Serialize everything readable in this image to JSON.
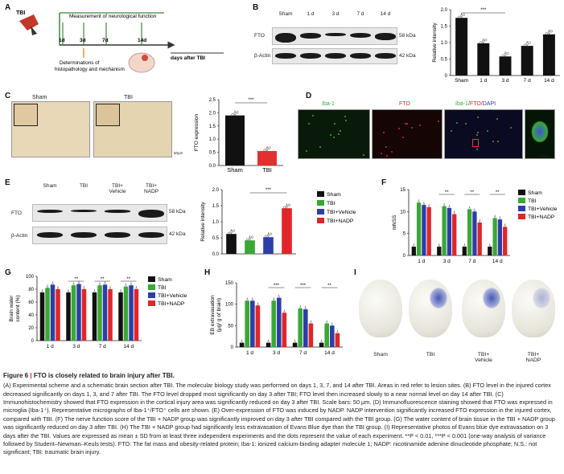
{
  "panelA": {
    "label": "A",
    "tbi": "TBI",
    "measure": "Measurement of neurological function",
    "days": [
      "1d",
      "3d",
      "7d",
      "14d"
    ],
    "histo": "Determinations of\nhistopathology and mechanism",
    "axis": "days after TBI"
  },
  "panelB": {
    "label": "B",
    "lanes": [
      "Sham",
      "1 d",
      "3 d",
      "7 d",
      "14 d"
    ],
    "rows": [
      "FTO",
      "β-Actin"
    ],
    "kda": [
      "58 kDa",
      "42 kDa"
    ],
    "chart_data": {
      "type": "bar",
      "categories": [
        "Sham",
        "1 d",
        "3 d",
        "7 d",
        "14 d"
      ],
      "values": [
        1.75,
        0.98,
        0.58,
        0.9,
        1.25
      ],
      "ylabel": "Relative intensity",
      "ylim": [
        0,
        2.0
      ],
      "yticks": [
        "0",
        "0.5",
        "1.0",
        "1.5",
        "2.0"
      ],
      "sig": "***"
    }
  },
  "panelC": {
    "label": "C",
    "img1": "Sham",
    "img2": "TBI",
    "scale": "50μm",
    "chart_data": {
      "type": "bar",
      "categories": [
        "Sham",
        "TBI"
      ],
      "values": [
        1.9,
        0.55
      ],
      "ylabel": "FTO expression",
      "ylim": [
        0,
        2.5
      ],
      "yticks": [
        "0.0",
        "0.5",
        "1.0",
        "1.5",
        "2.0",
        "2.5"
      ],
      "sig": "***",
      "colors": [
        "#111111",
        "#e23030"
      ]
    }
  },
  "panelD": {
    "label": "D",
    "t1": "Iba-1",
    "t2": "FTO",
    "t3a": "Iba-1",
    "t3b": "/FTO/",
    "t3c": "DAPI",
    "scale": "50μm"
  },
  "panelE": {
    "label": "E",
    "lanes": [
      "Sham",
      "TBI",
      "TBI+\nVehicle",
      "TBI+\nNADP"
    ],
    "rows": [
      "FTO",
      "β-Actin"
    ],
    "kda": [
      "58 kDa",
      "42 kDa"
    ],
    "chart_data": {
      "type": "bar",
      "categories": [
        "Sham",
        "TBI",
        "TBI+Vehicle",
        "TBI+NADP"
      ],
      "values": [
        0.62,
        0.42,
        0.52,
        1.42
      ],
      "ylabel": "Relative intensity",
      "ylim": [
        0,
        2.0
      ],
      "yticks": [
        "0.0",
        "0.5",
        "1.0",
        "1.5",
        "2.0"
      ],
      "sig": "***",
      "legend": [
        "Sham",
        "TBI",
        "TBI+Vehicle",
        "TBI+NADP"
      ]
    }
  },
  "panelF": {
    "label": "F",
    "chart_data": {
      "type": "bar",
      "categories": [
        "1 d",
        "3 d",
        "7 d",
        "14 d"
      ],
      "ylabel": "mNSS",
      "ylim": [
        0,
        15
      ],
      "yticks": [
        "0",
        "5",
        "10",
        "15"
      ],
      "sig": [
        "",
        "**",
        "**",
        "**"
      ],
      "series": [
        {
          "name": "Sham",
          "values": [
            2,
            2,
            2,
            2
          ]
        },
        {
          "name": "TBI",
          "values": [
            12,
            11.2,
            10.5,
            8.5
          ]
        },
        {
          "name": "TBI+Vehicle",
          "values": [
            11.5,
            10.8,
            10,
            8.2
          ]
        },
        {
          "name": "TBI+NADP",
          "values": [
            11,
            9.4,
            7.5,
            6.5
          ]
        }
      ]
    }
  },
  "panelG": {
    "label": "G",
    "chart_data": {
      "type": "bar",
      "categories": [
        "1 d",
        "3 d",
        "7 d",
        "14 d"
      ],
      "ylabel": "Brain water\ncontent (%)",
      "ylim": [
        0,
        100
      ],
      "yticks": [
        "0",
        "20",
        "40",
        "60",
        "80",
        "100"
      ],
      "sig": [
        "",
        "**",
        "**",
        "**"
      ],
      "series": [
        {
          "name": "Sham",
          "values": [
            75,
            75,
            75,
            75
          ]
        },
        {
          "name": "TBI",
          "values": [
            82,
            86,
            86,
            84
          ]
        },
        {
          "name": "TBI+Vehicle",
          "values": [
            87,
            88,
            87,
            86
          ]
        },
        {
          "name": "TBI+NADP",
          "values": [
            80,
            80,
            80,
            80
          ]
        }
      ]
    }
  },
  "panelH": {
    "label": "H",
    "chart_data": {
      "type": "bar",
      "categories": [
        "1 d",
        "3 d",
        "7 d",
        "14 d"
      ],
      "ylabel": "EB extravasation\n(μg/ g of brain)",
      "ylim": [
        0,
        150
      ],
      "yticks": [
        "0",
        "50",
        "100",
        "150"
      ],
      "sig": [
        "",
        "***",
        "***",
        "**"
      ],
      "series": [
        {
          "name": "Sham",
          "values": [
            10,
            10,
            10,
            10
          ]
        },
        {
          "name": "TBI",
          "values": [
            108,
            108,
            90,
            55
          ]
        },
        {
          "name": "TBI+Vehicle",
          "values": [
            108,
            115,
            88,
            50
          ]
        },
        {
          "name": "TBI+NADP",
          "values": [
            97,
            80,
            55,
            32
          ]
        }
      ]
    }
  },
  "panelI": {
    "label": "I",
    "brains": [
      "Sham",
      "TBI",
      "TBI+\nVehicle",
      "TBI+\nNADP"
    ]
  },
  "legendColors": {
    "Sham": "#111111",
    "TBI": "#3aa835",
    "TBI+Vehicle": "#2d3ea8",
    "TBI+NADP": "#e0262a"
  },
  "caption": {
    "fig": "Figure 6",
    "sep": " | ",
    "title": "FTO is closely related to brain injury after TBI.",
    "body": "(A) Experimental scheme and a schematic brain section after TBI. The molecular biology study was performed on days 1, 3, 7, and 14 after TBI. Areas in red refer to lesion sites. (B) FTO level in the injured cortex decreased significantly on days 1, 3, and 7 after TBI. The FTO level dropped most significantly on day 3 after TBI; FTO level then increased slowly to a near normal level on day 14 after TBI. (C) Immunohistochemistry showed that FTO expression in the cortical injury area was significantly reduced on day 3 after TBI. Scale bars: 50 μm. (D) Immunofluorescence staining showed that FTO was expressed in microglia (Iba-1⁺). Representative micrographs of Iba-1⁺/FTO⁺ cells are shown. (E) Over-expression of FTO was induced by NADP. NADP intervention significantly increased FTO expression in the injured cortex, compared with TBI. (F) The nerve function score of the TBI + NADP group was significantly improved on day 3 after TBI compared with the TBI group. (G) The water content of brain tissue in the TBI + NADP group was significantly reduced on day 3 after TBI. (H) The TBI + NADP group had significantly less extravasation of Evans Blue dye than the TBI group. (I) Representative photos of Evans blue dye extravasation on 3 days after the TBI. Values are expressed as mean ± SD from at least three independent experiments and the dots represent the value of each experiment. **P < 0.01, ***P < 0.001 (one-way analysis of variance followed by Student–Newman–Keuls tests). FTO: The fat mass and obesity-related protein; Iba-1: ionized calcium-binding adapter molecule 1; NADP: nicotinamide adenine dinucleotide phosphate; N.S.: not significant; TBI: traumatic brain injury."
  }
}
